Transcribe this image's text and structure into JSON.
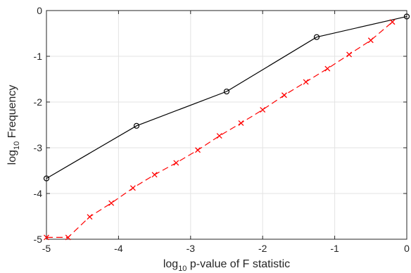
{
  "chart_data": {
    "type": "line",
    "title": "",
    "xlabel": {
      "prefix": "log",
      "sub": "10",
      "suffix": " p-value of F statistic"
    },
    "ylabel": {
      "prefix": "log",
      "sub": "10",
      "suffix": " Frequency"
    },
    "xlim": [
      -5,
      0
    ],
    "ylim": [
      -5,
      0
    ],
    "xticks": [
      -5,
      -4,
      -3,
      -2,
      -1,
      0
    ],
    "yticks": [
      0,
      -1,
      -2,
      -3,
      -4,
      -5
    ],
    "xtick_labels": [
      "-5",
      "-4",
      "-3",
      "-2",
      "-1",
      "0"
    ],
    "ytick_labels": [
      "0",
      "-1",
      "-2",
      "-3",
      "-4",
      "-5"
    ],
    "grid": true,
    "series": [
      {
        "color": "#000000",
        "line_style": "solid",
        "marker": "circle",
        "points": [
          [
            -5.0,
            -3.67
          ],
          [
            -3.75,
            -2.52
          ],
          [
            -2.5,
            -1.77
          ],
          [
            -1.25,
            -0.58
          ],
          [
            0.0,
            -0.13
          ]
        ]
      },
      {
        "color": "#ff0000",
        "line_style": "dashed",
        "marker": "x",
        "points": [
          [
            -5.0,
            -4.96
          ],
          [
            -4.7,
            -4.96
          ],
          [
            -4.4,
            -4.51
          ],
          [
            -4.1,
            -4.21
          ],
          [
            -3.8,
            -3.88
          ],
          [
            -3.5,
            -3.59
          ],
          [
            -3.2,
            -3.33
          ],
          [
            -2.9,
            -3.05
          ],
          [
            -2.6,
            -2.74
          ],
          [
            -2.3,
            -2.46
          ],
          [
            -2.0,
            -2.17
          ],
          [
            -1.7,
            -1.85
          ],
          [
            -1.4,
            -1.56
          ],
          [
            -1.1,
            -1.27
          ],
          [
            -0.8,
            -0.96
          ],
          [
            -0.5,
            -0.65
          ],
          [
            -0.2,
            -0.25
          ]
        ]
      }
    ]
  }
}
